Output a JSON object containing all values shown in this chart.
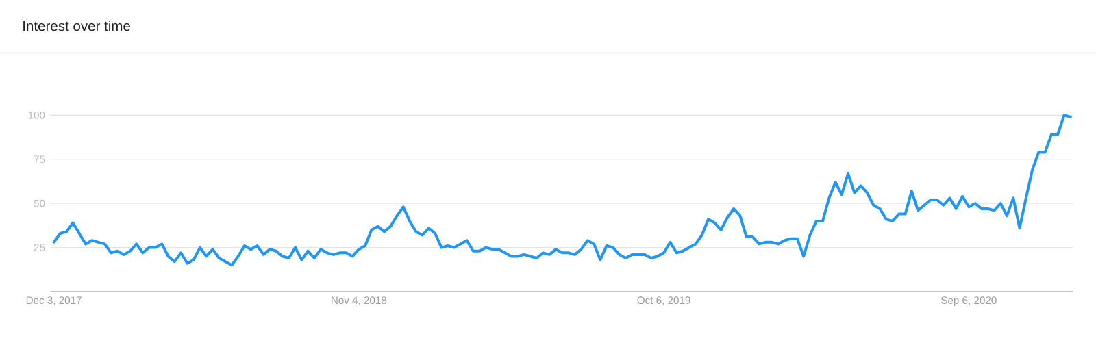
{
  "chart_data": {
    "type": "line",
    "title": "Interest over time",
    "x": [
      "2017-12-03",
      "2017-12-10",
      "2017-12-17",
      "2017-12-24",
      "2017-12-31",
      "2018-01-07",
      "2018-01-14",
      "2018-01-21",
      "2018-01-28",
      "2018-02-04",
      "2018-02-11",
      "2018-02-18",
      "2018-02-25",
      "2018-03-04",
      "2018-03-11",
      "2018-03-18",
      "2018-03-25",
      "2018-04-01",
      "2018-04-08",
      "2018-04-15",
      "2018-04-22",
      "2018-04-29",
      "2018-05-06",
      "2018-05-13",
      "2018-05-20",
      "2018-05-27",
      "2018-06-03",
      "2018-06-10",
      "2018-06-17",
      "2018-06-24",
      "2018-07-01",
      "2018-07-08",
      "2018-07-15",
      "2018-07-22",
      "2018-07-29",
      "2018-08-05",
      "2018-08-12",
      "2018-08-19",
      "2018-08-26",
      "2018-09-02",
      "2018-09-09",
      "2018-09-16",
      "2018-09-23",
      "2018-09-30",
      "2018-10-07",
      "2018-10-14",
      "2018-10-21",
      "2018-10-28",
      "2018-11-04",
      "2018-11-11",
      "2018-11-18",
      "2018-11-25",
      "2018-12-02",
      "2018-12-09",
      "2018-12-16",
      "2018-12-23",
      "2018-12-30",
      "2019-01-06",
      "2019-01-13",
      "2019-01-20",
      "2019-01-27",
      "2019-02-03",
      "2019-02-10",
      "2019-02-17",
      "2019-02-24",
      "2019-03-03",
      "2019-03-10",
      "2019-03-17",
      "2019-03-24",
      "2019-03-31",
      "2019-04-07",
      "2019-04-14",
      "2019-04-21",
      "2019-04-28",
      "2019-05-05",
      "2019-05-12",
      "2019-05-19",
      "2019-05-26",
      "2019-06-02",
      "2019-06-09",
      "2019-06-16",
      "2019-06-23",
      "2019-06-30",
      "2019-07-07",
      "2019-07-14",
      "2019-07-21",
      "2019-07-28",
      "2019-08-04",
      "2019-08-11",
      "2019-08-18",
      "2019-08-25",
      "2019-09-01",
      "2019-09-08",
      "2019-09-15",
      "2019-09-22",
      "2019-09-29",
      "2019-10-06",
      "2019-10-13",
      "2019-10-20",
      "2019-10-27",
      "2019-11-03",
      "2019-11-10",
      "2019-11-17",
      "2019-11-24",
      "2019-12-01",
      "2019-12-08",
      "2019-12-15",
      "2019-12-22",
      "2019-12-29",
      "2020-01-05",
      "2020-01-12",
      "2020-01-19",
      "2020-01-26",
      "2020-02-02",
      "2020-02-09",
      "2020-02-16",
      "2020-02-23",
      "2020-03-01",
      "2020-03-08",
      "2020-03-15",
      "2020-03-22",
      "2020-03-29",
      "2020-04-05",
      "2020-04-12",
      "2020-04-19",
      "2020-04-26",
      "2020-05-03",
      "2020-05-10",
      "2020-05-17",
      "2020-05-24",
      "2020-05-31",
      "2020-06-07",
      "2020-06-14",
      "2020-06-21",
      "2020-06-28",
      "2020-07-05",
      "2020-07-12",
      "2020-07-19",
      "2020-07-26",
      "2020-08-02",
      "2020-08-09",
      "2020-08-16",
      "2020-08-23",
      "2020-08-30",
      "2020-09-06",
      "2020-09-13",
      "2020-09-20",
      "2020-09-27",
      "2020-10-04",
      "2020-10-11",
      "2020-10-18",
      "2020-10-25",
      "2020-11-01",
      "2020-11-08",
      "2020-11-15",
      "2020-11-22",
      "2020-11-29",
      "2020-12-06",
      "2020-12-13",
      "2020-12-20",
      "2020-12-27"
    ],
    "values": [
      28,
      33,
      34,
      39,
      33,
      27,
      29,
      28,
      27,
      22,
      23,
      21,
      23,
      27,
      22,
      25,
      25,
      27,
      20,
      17,
      22,
      16,
      18,
      25,
      20,
      24,
      19,
      17,
      15,
      20,
      26,
      24,
      26,
      21,
      24,
      23,
      20,
      19,
      25,
      18,
      23,
      19,
      24,
      22,
      21,
      22,
      22,
      20,
      24,
      26,
      35,
      37,
      34,
      37,
      43,
      48,
      40,
      34,
      32,
      36,
      33,
      25,
      26,
      25,
      27,
      29,
      23,
      23,
      25,
      24,
      24,
      22,
      20,
      20,
      21,
      20,
      19,
      22,
      21,
      24,
      22,
      22,
      21,
      24,
      29,
      27,
      18,
      26,
      25,
      21,
      19,
      21,
      21,
      21,
      19,
      20,
      22,
      28,
      22,
      23,
      25,
      27,
      32,
      41,
      39,
      35,
      42,
      47,
      43,
      31,
      31,
      27,
      28,
      28,
      27,
      29,
      30,
      30,
      20,
      32,
      40,
      40,
      53,
      62,
      55,
      67,
      56,
      60,
      56,
      49,
      47,
      41,
      40,
      44,
      44,
      57,
      46,
      49,
      52,
      52,
      49,
      53,
      47,
      54,
      48,
      50,
      47,
      47,
      46,
      50,
      43,
      53,
      36,
      53,
      69,
      79,
      79,
      89,
      89,
      100,
      99
    ],
    "color": "#2196f3",
    "line_style": "solid",
    "xlim": [
      "2017-11-29",
      "2020-12-30"
    ],
    "xticks": [
      {
        "value": "2017-12-03",
        "label": "Dec 3, 2017"
      },
      {
        "value": "2018-11-04",
        "label": "Nov 4, 2018"
      },
      {
        "value": "2019-10-06",
        "label": "Oct 6, 2019"
      },
      {
        "value": "2020-09-06",
        "label": "Sep 6, 2020"
      }
    ],
    "ylim": [
      0,
      100
    ],
    "yticks": [
      25,
      50,
      75,
      100
    ],
    "grid": "y"
  }
}
